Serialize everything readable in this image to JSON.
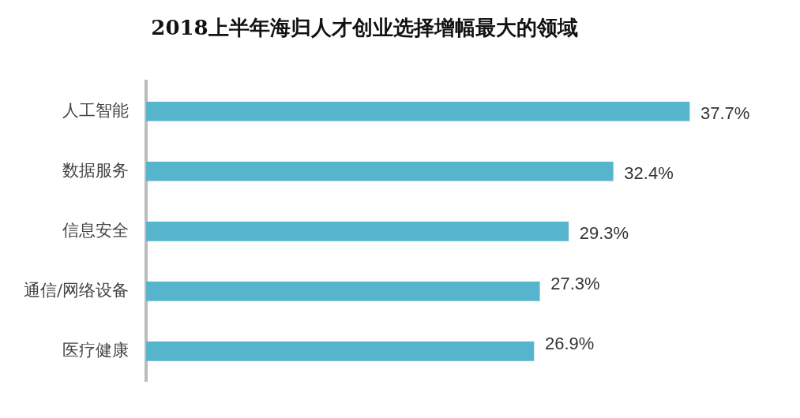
{
  "chart_data": {
    "type": "bar",
    "orientation": "horizontal",
    "title": "2018上半年海归人才创业选择增幅最大的领域",
    "categories": [
      "人工智能",
      "数据服务",
      "信息安全",
      "通信/网络设备",
      "医疗健康"
    ],
    "values": [
      37.7,
      32.4,
      29.3,
      27.3,
      26.9
    ],
    "value_labels": [
      "37.7%",
      "32.4%",
      "29.3%",
      "27.3%",
      "26.9%"
    ],
    "color": "#56b4cc",
    "grid": false,
    "legend": false
  }
}
